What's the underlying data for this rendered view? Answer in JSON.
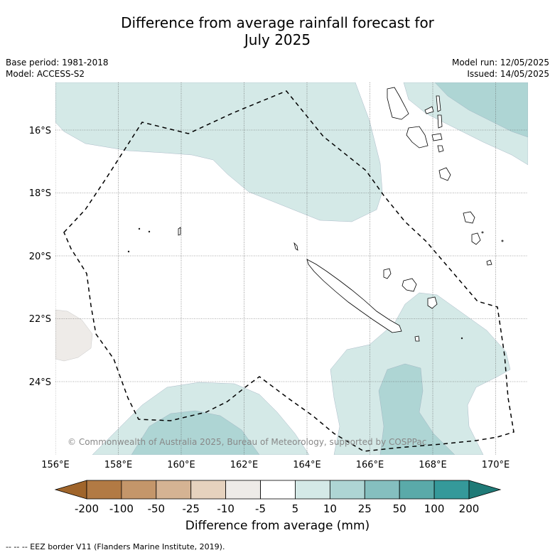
{
  "title_line1": "Difference from average rainfall forecast for",
  "title_line2": "July 2025",
  "base_period": "Base period: 1981-2018",
  "model": "Model: ACCESS-S2",
  "model_run": "Model run: 12/05/2025",
  "issued": "Issued: 14/05/2025",
  "credit": "© Commonwealth of Australia 2025, Bureau of Meteorology, supported by COSPPac",
  "x_ticks": [
    "156°E",
    "158°E",
    "160°E",
    "162°E",
    "164°E",
    "166°E",
    "168°E",
    "170°E"
  ],
  "y_ticks": [
    "16°S",
    "18°S",
    "20°S",
    "22°S",
    "24°S"
  ],
  "colorbar": {
    "labels": [
      "-200",
      "-100",
      "-50",
      "-25",
      "-10",
      "-5",
      "5",
      "10",
      "25",
      "50",
      "100",
      "200"
    ],
    "colors": [
      "#a0652b",
      "#b27a44",
      "#c4966a",
      "#d5b393",
      "#e6d2be",
      "#eeebe8",
      "#ffffff",
      "#d4e9e7",
      "#aed5d4",
      "#85bfbf",
      "#5aaaa9",
      "#35999a",
      "#1f7a77"
    ],
    "title": "Difference from average (mm)"
  },
  "footnote": "--  --  -- EEZ border V11 (Flanders Marine Institute, 2019)."
}
